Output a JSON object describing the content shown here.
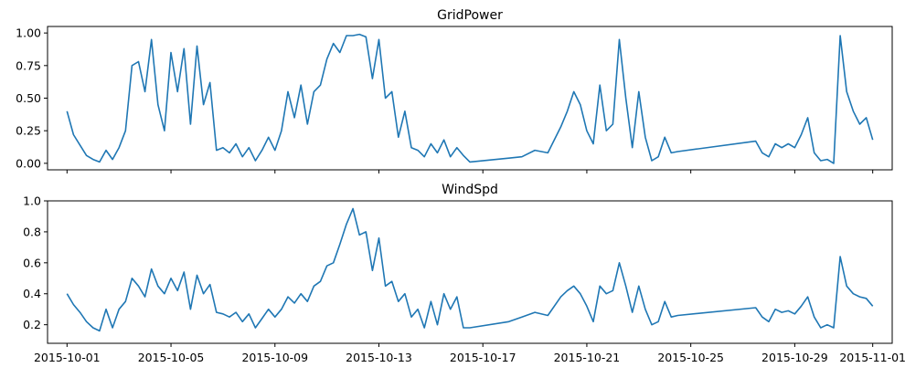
{
  "chart_data": [
    {
      "type": "line",
      "title": "GridPower",
      "xlabel": "",
      "ylabel": "",
      "ylim": [
        -0.05,
        1.05
      ],
      "yticks": [
        0.0,
        0.25,
        0.5,
        0.75,
        1.0
      ],
      "ytick_labels": [
        "0.00",
        "0.25",
        "0.50",
        "0.75",
        "1.00"
      ],
      "xlim": [
        "2015-09-30T06:00",
        "2015-11-01T18:00"
      ],
      "xticks": [
        "2015-10-01",
        "2015-10-05",
        "2015-10-09",
        "2015-10-13",
        "2015-10-17",
        "2015-10-21",
        "2015-10-25",
        "2015-10-29",
        "2015-11-01"
      ],
      "show_xtick_labels": false,
      "grid": false,
      "color": "#1f77b4",
      "series": [
        {
          "x": [
            "2015-10-01T00:00",
            "2015-10-01T06:00",
            "2015-10-01T12:00",
            "2015-10-01T18:00",
            "2015-10-02T00:00",
            "2015-10-02T06:00",
            "2015-10-02T12:00",
            "2015-10-02T18:00",
            "2015-10-03T00:00",
            "2015-10-03T06:00",
            "2015-10-03T12:00",
            "2015-10-03T18:00",
            "2015-10-04T00:00",
            "2015-10-04T06:00",
            "2015-10-04T12:00",
            "2015-10-04T18:00",
            "2015-10-05T00:00",
            "2015-10-05T06:00",
            "2015-10-05T12:00",
            "2015-10-05T18:00",
            "2015-10-06T00:00",
            "2015-10-06T06:00",
            "2015-10-06T12:00",
            "2015-10-06T18:00",
            "2015-10-07T00:00",
            "2015-10-07T06:00",
            "2015-10-07T12:00",
            "2015-10-07T18:00",
            "2015-10-08T00:00",
            "2015-10-08T06:00",
            "2015-10-08T12:00",
            "2015-10-08T18:00",
            "2015-10-09T00:00",
            "2015-10-09T06:00",
            "2015-10-09T12:00",
            "2015-10-09T18:00",
            "2015-10-10T00:00",
            "2015-10-10T06:00",
            "2015-10-10T12:00",
            "2015-10-10T18:00",
            "2015-10-11T00:00",
            "2015-10-11T06:00",
            "2015-10-11T12:00",
            "2015-10-11T18:00",
            "2015-10-12T00:00",
            "2015-10-12T06:00",
            "2015-10-12T12:00",
            "2015-10-12T18:00",
            "2015-10-13T00:00",
            "2015-10-13T06:00",
            "2015-10-13T12:00",
            "2015-10-13T18:00",
            "2015-10-14T00:00",
            "2015-10-14T06:00",
            "2015-10-14T12:00",
            "2015-10-14T18:00",
            "2015-10-15T00:00",
            "2015-10-15T06:00",
            "2015-10-15T12:00",
            "2015-10-15T18:00",
            "2015-10-16T00:00",
            "2015-10-16T06:00",
            "2015-10-16T12:00",
            "2015-10-18T00:00",
            "2015-10-18T12:00",
            "2015-10-19T00:00",
            "2015-10-19T12:00",
            "2015-10-20T00:00",
            "2015-10-20T06:00",
            "2015-10-20T12:00",
            "2015-10-20T18:00",
            "2015-10-21T00:00",
            "2015-10-21T06:00",
            "2015-10-21T12:00",
            "2015-10-21T18:00",
            "2015-10-22T00:00",
            "2015-10-22T06:00",
            "2015-10-22T12:00",
            "2015-10-22T18:00",
            "2015-10-23T00:00",
            "2015-10-23T06:00",
            "2015-10-23T12:00",
            "2015-10-23T18:00",
            "2015-10-24T00:00",
            "2015-10-24T06:00",
            "2015-10-24T12:00",
            "2015-10-27T12:00",
            "2015-10-27T18:00",
            "2015-10-28T00:00",
            "2015-10-28T06:00",
            "2015-10-28T12:00",
            "2015-10-28T18:00",
            "2015-10-29T00:00",
            "2015-10-29T06:00",
            "2015-10-29T12:00",
            "2015-10-29T18:00",
            "2015-10-30T00:00",
            "2015-10-30T06:00",
            "2015-10-30T12:00",
            "2015-10-30T18:00",
            "2015-10-31T00:00",
            "2015-10-31T06:00",
            "2015-10-31T12:00",
            "2015-10-31T18:00",
            "2015-11-01T00:00"
          ],
          "values": [
            0.4,
            0.22,
            0.14,
            0.06,
            0.03,
            0.01,
            0.1,
            0.03,
            0.12,
            0.25,
            0.75,
            0.78,
            0.55,
            0.95,
            0.45,
            0.25,
            0.85,
            0.55,
            0.88,
            0.3,
            0.9,
            0.45,
            0.62,
            0.1,
            0.12,
            0.08,
            0.15,
            0.05,
            0.12,
            0.02,
            0.1,
            0.2,
            0.1,
            0.25,
            0.55,
            0.35,
            0.6,
            0.3,
            0.55,
            0.6,
            0.8,
            0.92,
            0.85,
            0.98,
            0.98,
            0.99,
            0.97,
            0.65,
            0.95,
            0.5,
            0.55,
            0.2,
            0.4,
            0.12,
            0.1,
            0.05,
            0.15,
            0.08,
            0.18,
            0.05,
            0.12,
            0.06,
            0.01,
            0.04,
            0.05,
            0.1,
            0.08,
            0.28,
            0.4,
            0.55,
            0.45,
            0.25,
            0.15,
            0.6,
            0.25,
            0.3,
            0.95,
            0.5,
            0.12,
            0.55,
            0.2,
            0.02,
            0.05,
            0.2,
            0.08,
            0.09,
            0.17,
            0.08,
            0.05,
            0.15,
            0.12,
            0.15,
            0.12,
            0.22,
            0.35,
            0.08,
            0.02,
            0.03,
            0.0,
            0.98,
            0.55,
            0.4,
            0.3,
            0.35,
            0.18
          ]
        }
      ]
    },
    {
      "type": "line",
      "title": "WindSpd",
      "xlabel": "",
      "ylabel": "",
      "ylim": [
        0.08,
        1.0
      ],
      "yticks": [
        0.2,
        0.4,
        0.6,
        0.8,
        1.0
      ],
      "ytick_labels": [
        "0.2",
        "0.4",
        "0.6",
        "0.8",
        "1.0"
      ],
      "xlim": [
        "2015-09-30T06:00",
        "2015-11-01T18:00"
      ],
      "xticks": [
        "2015-10-01",
        "2015-10-05",
        "2015-10-09",
        "2015-10-13",
        "2015-10-17",
        "2015-10-21",
        "2015-10-25",
        "2015-10-29",
        "2015-11-01"
      ],
      "xtick_labels": [
        "2015-10-01",
        "2015-10-05",
        "2015-10-09",
        "2015-10-13",
        "2015-10-17",
        "2015-10-21",
        "2015-10-25",
        "2015-10-29",
        "2015-11-01"
      ],
      "grid": false,
      "color": "#1f77b4",
      "series": [
        {
          "x": [
            "2015-10-01T00:00",
            "2015-10-01T06:00",
            "2015-10-01T12:00",
            "2015-10-01T18:00",
            "2015-10-02T00:00",
            "2015-10-02T06:00",
            "2015-10-02T12:00",
            "2015-10-02T18:00",
            "2015-10-03T00:00",
            "2015-10-03T06:00",
            "2015-10-03T12:00",
            "2015-10-03T18:00",
            "2015-10-04T00:00",
            "2015-10-04T06:00",
            "2015-10-04T12:00",
            "2015-10-04T18:00",
            "2015-10-05T00:00",
            "2015-10-05T06:00",
            "2015-10-05T12:00",
            "2015-10-05T18:00",
            "2015-10-06T00:00",
            "2015-10-06T06:00",
            "2015-10-06T12:00",
            "2015-10-06T18:00",
            "2015-10-07T00:00",
            "2015-10-07T06:00",
            "2015-10-07T12:00",
            "2015-10-07T18:00",
            "2015-10-08T00:00",
            "2015-10-08T06:00",
            "2015-10-08T12:00",
            "2015-10-08T18:00",
            "2015-10-09T00:00",
            "2015-10-09T06:00",
            "2015-10-09T12:00",
            "2015-10-09T18:00",
            "2015-10-10T00:00",
            "2015-10-10T06:00",
            "2015-10-10T12:00",
            "2015-10-10T18:00",
            "2015-10-11T00:00",
            "2015-10-11T06:00",
            "2015-10-11T12:00",
            "2015-10-11T18:00",
            "2015-10-12T00:00",
            "2015-10-12T06:00",
            "2015-10-12T12:00",
            "2015-10-12T18:00",
            "2015-10-13T00:00",
            "2015-10-13T06:00",
            "2015-10-13T12:00",
            "2015-10-13T18:00",
            "2015-10-14T00:00",
            "2015-10-14T06:00",
            "2015-10-14T12:00",
            "2015-10-14T18:00",
            "2015-10-15T00:00",
            "2015-10-15T06:00",
            "2015-10-15T12:00",
            "2015-10-15T18:00",
            "2015-10-16T00:00",
            "2015-10-16T06:00",
            "2015-10-16T12:00",
            "2015-10-18T00:00",
            "2015-10-18T12:00",
            "2015-10-19T00:00",
            "2015-10-19T12:00",
            "2015-10-20T00:00",
            "2015-10-20T06:00",
            "2015-10-20T12:00",
            "2015-10-20T18:00",
            "2015-10-21T00:00",
            "2015-10-21T06:00",
            "2015-10-21T12:00",
            "2015-10-21T18:00",
            "2015-10-22T00:00",
            "2015-10-22T06:00",
            "2015-10-22T12:00",
            "2015-10-22T18:00",
            "2015-10-23T00:00",
            "2015-10-23T06:00",
            "2015-10-23T12:00",
            "2015-10-23T18:00",
            "2015-10-24T00:00",
            "2015-10-24T06:00",
            "2015-10-24T12:00",
            "2015-10-27T12:00",
            "2015-10-27T18:00",
            "2015-10-28T00:00",
            "2015-10-28T06:00",
            "2015-10-28T12:00",
            "2015-10-28T18:00",
            "2015-10-29T00:00",
            "2015-10-29T06:00",
            "2015-10-29T12:00",
            "2015-10-29T18:00",
            "2015-10-30T00:00",
            "2015-10-30T06:00",
            "2015-10-30T12:00",
            "2015-10-30T18:00",
            "2015-10-31T00:00",
            "2015-10-31T06:00",
            "2015-10-31T12:00",
            "2015-10-31T18:00",
            "2015-11-01T00:00"
          ],
          "values": [
            0.4,
            0.33,
            0.28,
            0.22,
            0.18,
            0.16,
            0.3,
            0.18,
            0.3,
            0.35,
            0.5,
            0.45,
            0.38,
            0.56,
            0.45,
            0.4,
            0.5,
            0.42,
            0.54,
            0.3,
            0.52,
            0.4,
            0.46,
            0.28,
            0.27,
            0.25,
            0.28,
            0.22,
            0.27,
            0.18,
            0.24,
            0.3,
            0.25,
            0.3,
            0.38,
            0.34,
            0.4,
            0.35,
            0.45,
            0.48,
            0.58,
            0.6,
            0.72,
            0.85,
            0.95,
            0.78,
            0.8,
            0.55,
            0.76,
            0.45,
            0.48,
            0.35,
            0.4,
            0.25,
            0.3,
            0.18,
            0.35,
            0.2,
            0.4,
            0.3,
            0.38,
            0.18,
            0.18,
            0.22,
            0.25,
            0.28,
            0.26,
            0.38,
            0.42,
            0.45,
            0.4,
            0.32,
            0.22,
            0.45,
            0.4,
            0.42,
            0.6,
            0.45,
            0.28,
            0.45,
            0.3,
            0.2,
            0.22,
            0.35,
            0.25,
            0.26,
            0.31,
            0.25,
            0.22,
            0.3,
            0.28,
            0.29,
            0.27,
            0.32,
            0.38,
            0.25,
            0.18,
            0.2,
            0.18,
            0.64,
            0.45,
            0.4,
            0.38,
            0.37,
            0.32
          ]
        }
      ]
    }
  ]
}
